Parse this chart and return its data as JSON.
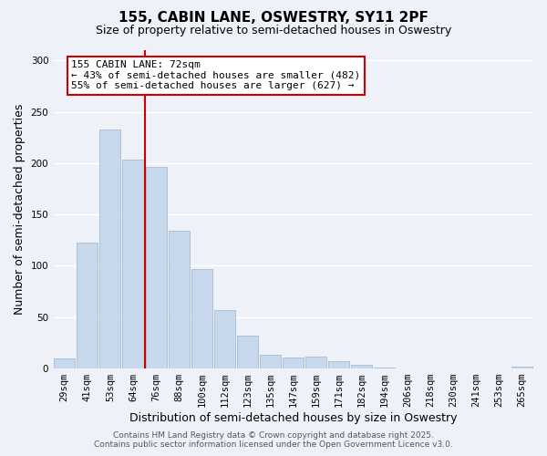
{
  "title": "155, CABIN LANE, OSWESTRY, SY11 2PF",
  "subtitle": "Size of property relative to semi-detached houses in Oswestry",
  "xlabel": "Distribution of semi-detached houses by size in Oswestry",
  "ylabel": "Number of semi-detached properties",
  "categories": [
    "29sqm",
    "41sqm",
    "53sqm",
    "64sqm",
    "76sqm",
    "88sqm",
    "100sqm",
    "112sqm",
    "123sqm",
    "135sqm",
    "147sqm",
    "159sqm",
    "171sqm",
    "182sqm",
    "194sqm",
    "206sqm",
    "218sqm",
    "230sqm",
    "241sqm",
    "253sqm",
    "265sqm"
  ],
  "values": [
    10,
    123,
    233,
    203,
    196,
    134,
    97,
    57,
    32,
    13,
    11,
    12,
    7,
    4,
    1,
    0,
    0,
    0,
    0,
    0,
    2
  ],
  "bar_color": "#c8d8ec",
  "bar_edge_color": "#9ab4cc",
  "vline_x_index": 4,
  "vline_color": "#cc0000",
  "annotation_title": "155 CABIN LANE: 72sqm",
  "annotation_line1": "← 43% of semi-detached houses are smaller (482)",
  "annotation_line2": "55% of semi-detached houses are larger (627) →",
  "annotation_box_color": "#ffffff",
  "annotation_box_edge": "#cc0000",
  "ylim": [
    0,
    310
  ],
  "yticks": [
    0,
    50,
    100,
    150,
    200,
    250,
    300
  ],
  "footer_line1": "Contains HM Land Registry data © Crown copyright and database right 2025.",
  "footer_line2": "Contains public sector information licensed under the Open Government Licence v3.0.",
  "bg_color": "#eef2f8",
  "grid_color": "#ffffff",
  "title_fontsize": 11,
  "subtitle_fontsize": 9,
  "axis_label_fontsize": 9,
  "tick_fontsize": 7.5,
  "annotation_fontsize": 8,
  "footer_fontsize": 6.5
}
